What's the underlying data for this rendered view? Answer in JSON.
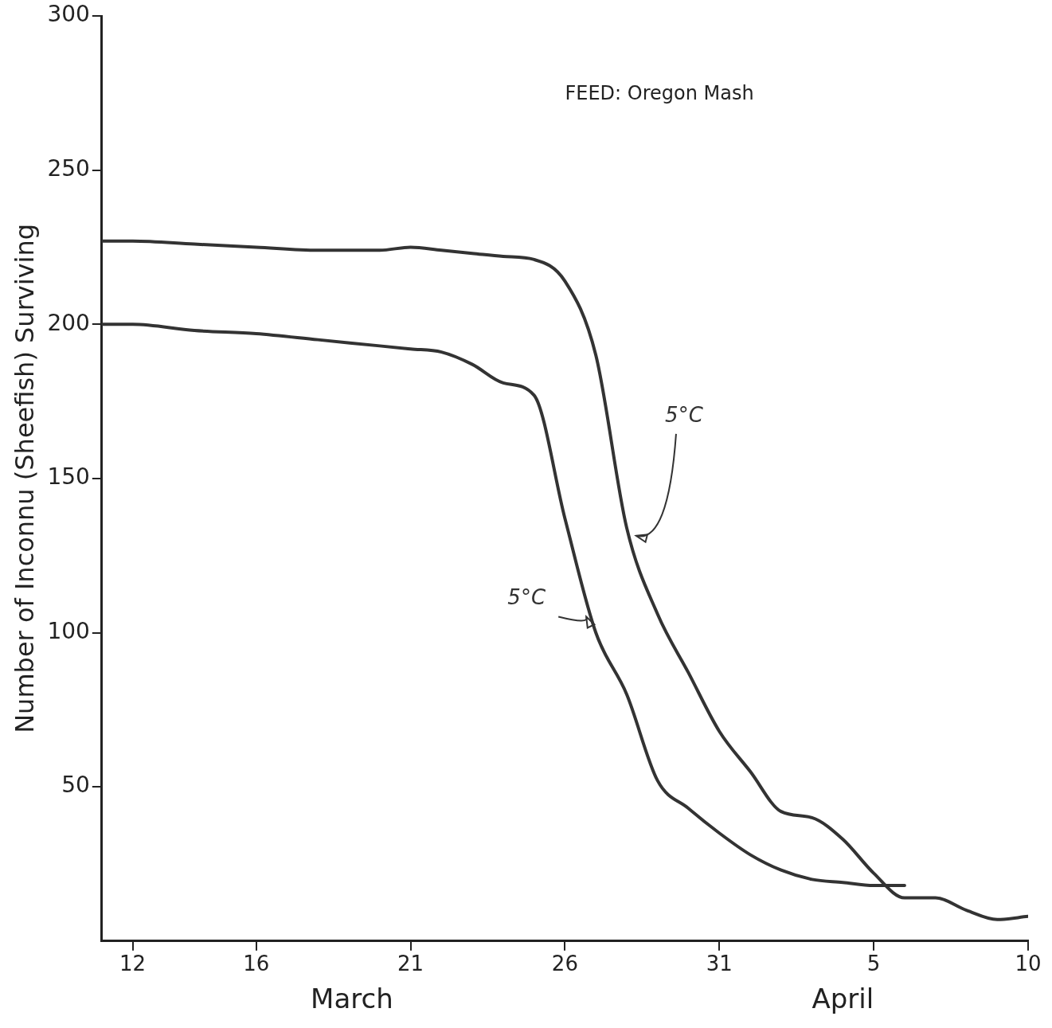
{
  "chart_data": {
    "type": "line",
    "ylabel": "Number of Inconnu (Sheefish) Surviving",
    "x": [
      "--03-11",
      "--03-12",
      "--03-14",
      "--03-16",
      "--03-18",
      "--03-20",
      "--03-21",
      "--03-22",
      "--03-23",
      "--03-24",
      "--03-25",
      "--03-26",
      "--03-27",
      "--03-28",
      "--03-29",
      "--03-30",
      "--03-31",
      "--04-01",
      "--04-02",
      "--04-03",
      "--04-04",
      "--04-05",
      "--04-06",
      "--04-07",
      "--04-08",
      "--04-09",
      "--04-10"
    ],
    "series": [
      {
        "name": "5°C",
        "color": "#333333",
        "values": [
          227,
          227,
          226,
          225,
          224,
          224,
          225,
          224,
          223,
          222,
          221,
          214,
          190,
          134,
          106,
          87,
          68,
          55,
          42,
          40,
          33,
          22,
          14,
          14,
          10,
          7,
          8
        ]
      },
      {
        "name": "5°C",
        "color": "#333333",
        "values": [
          200,
          200,
          198,
          197,
          195,
          193,
          192,
          191,
          187,
          181,
          177,
          137,
          100,
          80,
          52,
          43,
          35,
          28,
          23,
          20,
          19,
          18,
          18,
          null,
          null,
          null,
          null
        ]
      }
    ],
    "xlim": [
      "--03-11",
      "--04-10"
    ],
    "xticks": [
      {
        "value": "--03-12",
        "label": "12"
      },
      {
        "value": "--03-16",
        "label": "16"
      },
      {
        "value": "--03-21",
        "label": "21"
      },
      {
        "value": "--03-26",
        "label": "26"
      },
      {
        "value": "--03-31",
        "label": "31"
      },
      {
        "value": "--04-05",
        "label": "5"
      },
      {
        "value": "--04-10",
        "label": "10"
      }
    ],
    "ylim": [
      0,
      300
    ],
    "yticks": [
      50,
      100,
      150,
      200,
      250,
      300
    ],
    "annotations": [
      "FEED: Oregon Mash",
      "March",
      "April"
    ],
    "legend": false,
    "marker": "none",
    "line_style": "solid"
  }
}
